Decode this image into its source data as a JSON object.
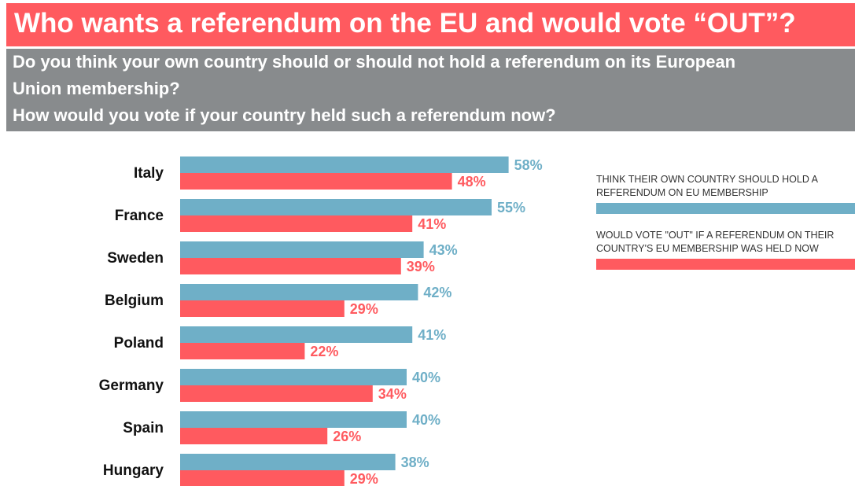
{
  "header": {
    "title": "Who wants a referendum on the EU and would vote “OUT”?",
    "subtitle_lines": [
      "Do you think your own country should or should not hold a referendum on its European",
      "Union membership?",
      "How would you vote if your country held such a referendum now?"
    ]
  },
  "colors": {
    "title_background": "#ff5a5f",
    "subtitle_background": "#888b8d",
    "series_hold_referendum": "#6fafc7",
    "series_vote_out": "#ff5a5f"
  },
  "chart_data": {
    "type": "bar",
    "orientation": "horizontal",
    "categories": [
      "Italy",
      "France",
      "Sweden",
      "Belgium",
      "Poland",
      "Germany",
      "Spain",
      "Hungary"
    ],
    "series": [
      {
        "name": "THINK THEIR OWN COUNTRY SHOULD  HOLD A REFERENDUM ON  EU MEMBERSHIP",
        "values": [
          58,
          55,
          43,
          42,
          41,
          40,
          40,
          38
        ],
        "labels": [
          "58%",
          "55%",
          "43%",
          "42%",
          "41%",
          "40%",
          "40%",
          "38%"
        ]
      },
      {
        "name": "WOULD VOTE \"OUT\"  IF A REFERENDUM ON THEIR COUNTRY'S EU MEMBERSHIP WAS HELD NOW",
        "values": [
          48,
          41,
          39,
          29,
          22,
          34,
          26,
          29
        ],
        "labels": [
          "48%",
          "41%",
          "39%",
          "29%",
          "22%",
          "34%",
          "26%",
          "29%"
        ]
      }
    ],
    "xlim": [
      0,
      60
    ],
    "grid": false,
    "legend_position": "right"
  },
  "legend": [
    {
      "text": "THINK THEIR OWN COUNTRY SHOULD  HOLD A REFERENDUM ON  EU MEMBERSHIP"
    },
    {
      "text": "WOULD VOTE \"OUT\"  IF A REFERENDUM ON THEIR COUNTRY'S EU MEMBERSHIP WAS HELD NOW"
    }
  ]
}
